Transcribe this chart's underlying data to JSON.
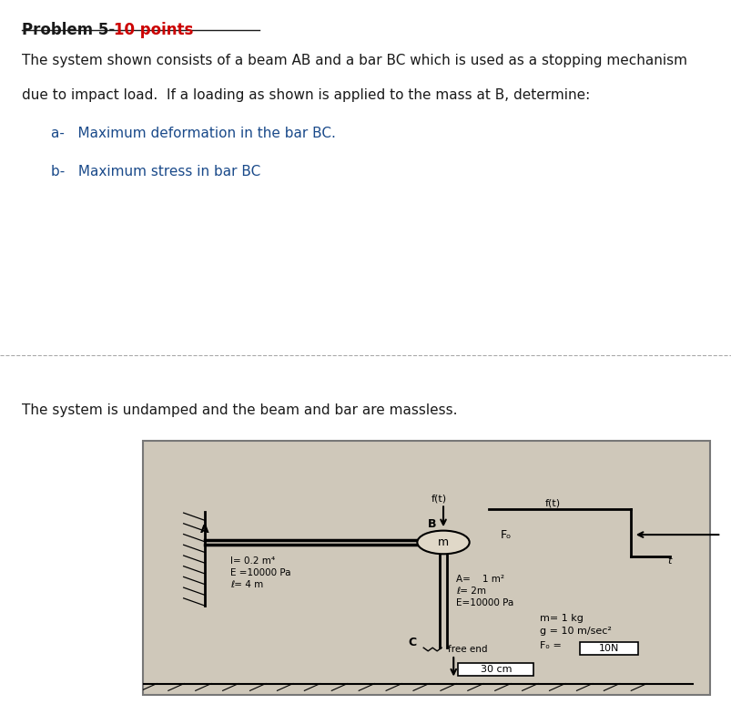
{
  "title_problem": "Problem 5- ",
  "title_points": "10 points",
  "body_line1": "The system shown consists of a beam AB and a bar BC which is used as a stopping mechanism",
  "body_line2": "due to impact load.  If a loading as shown is applied to the mass at B, determine:",
  "item_a": "a-   Maximum deformation in the bar BC.",
  "item_b": "b-   Maximum stress in bar BC",
  "undamped_text": "The system is undamped and the beam and bar are massless.",
  "beam_I": "I= 0.2 m⁴",
  "beam_E": "E =10000 Pa",
  "beam_l": "ℓ= 4 m",
  "bar_A": "A=    1 m²",
  "bar_l": "ℓ= 2m",
  "bar_E": "E=10000 Pa",
  "label_free_end": "free end",
  "label_drop": "30 cm",
  "label_mass": "m= 1 kg",
  "label_g": "g = 10 m/sec²",
  "label_Fo": "Fₒ =",
  "label_Fo_val": "10N",
  "label_ft": "f(t)",
  "label_A": "A",
  "label_B": "B",
  "label_C": "C",
  "label_m": "m",
  "label_t": "t",
  "label_Fo_arrow": "Fₒ",
  "white": "#ffffff",
  "black": "#000000",
  "red": "#cc0000",
  "blue": "#1a4a8a",
  "photo_bg": "#cfc8ba",
  "gray_div": "#e8e8e8",
  "text_dark": "#1a1a1a"
}
